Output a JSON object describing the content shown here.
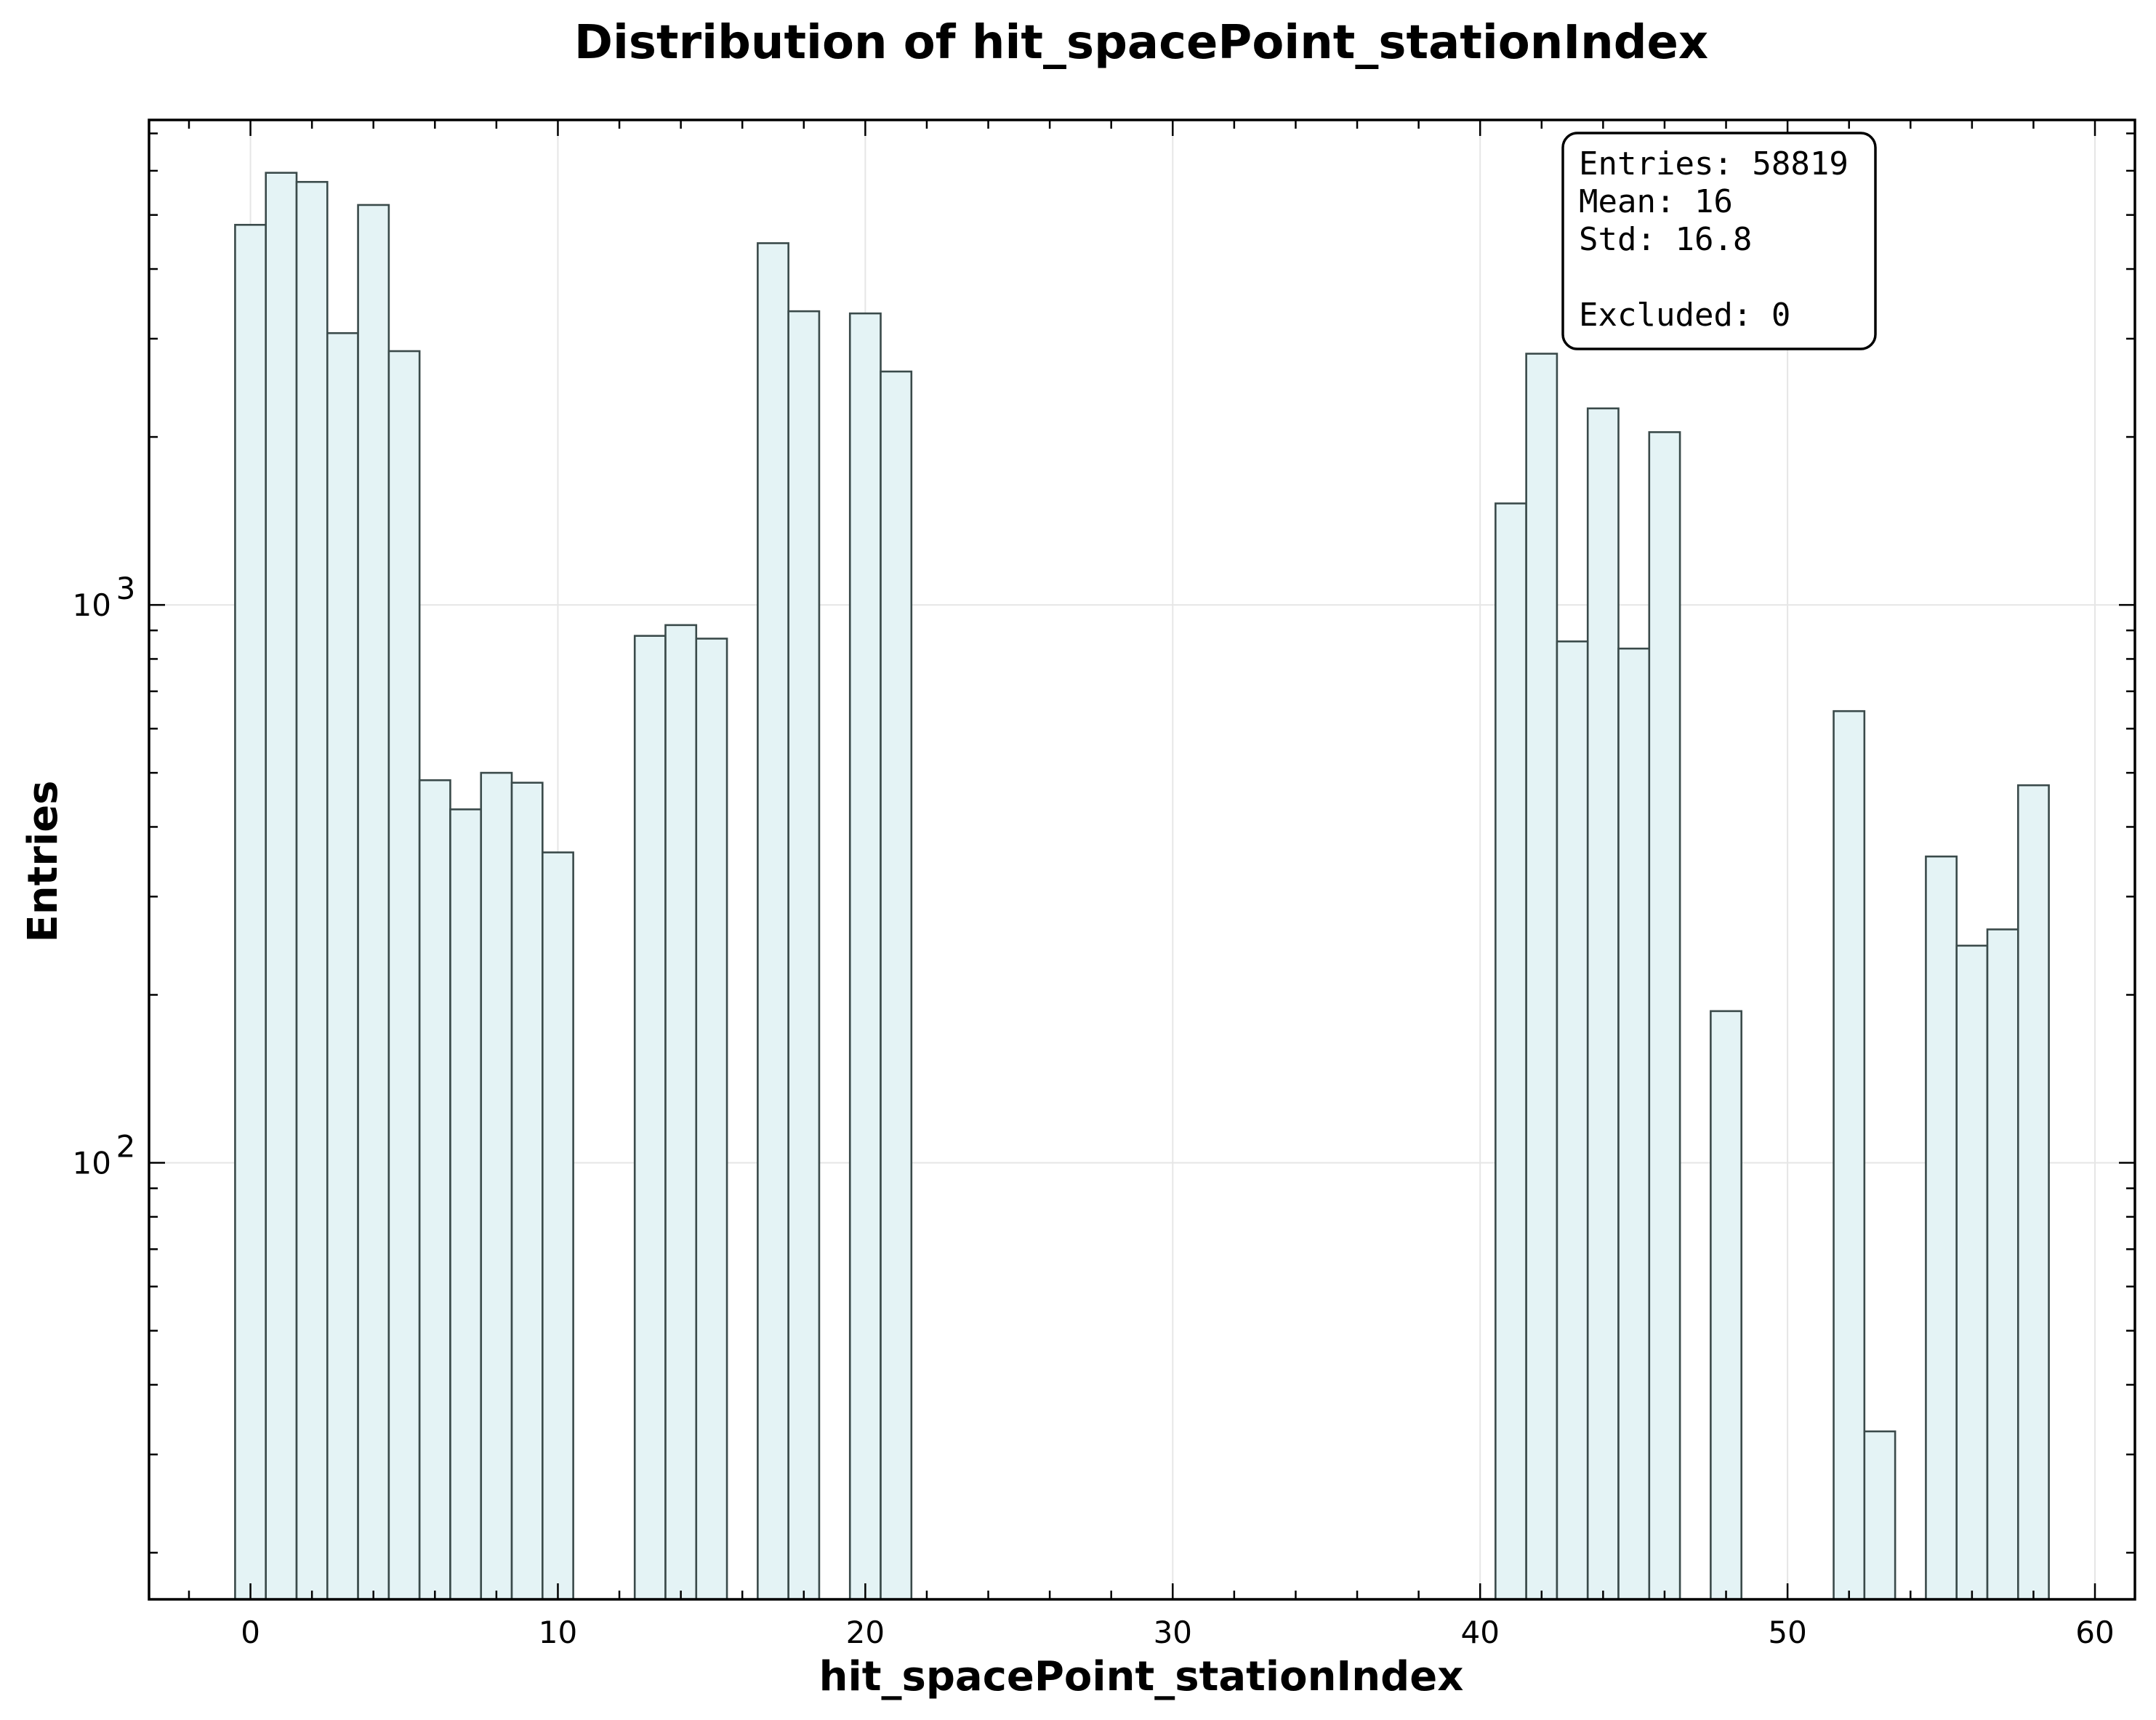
{
  "chart_data": {
    "type": "bar",
    "title": "Distribution of hit_spacePoint_stationIndex",
    "xlabel": "hit_spacePoint_stationIndex",
    "ylabel": "Entries",
    "xlim": [
      -3.3,
      61.3
    ],
    "ylim": [
      16.5,
      7400
    ],
    "yscale": "log",
    "grid": true,
    "x_ticks": [
      0,
      10,
      20,
      30,
      40,
      50,
      60
    ],
    "y_ticks": [
      {
        "value": 100,
        "base": "10",
        "exp": "2"
      },
      {
        "value": 1000,
        "base": "10",
        "exp": "3"
      }
    ],
    "bin_width": 1,
    "x": [
      0,
      1,
      2,
      3,
      4,
      5,
      6,
      7,
      8,
      9,
      10,
      13,
      14,
      15,
      17,
      18,
      20,
      21,
      41,
      42,
      43,
      44,
      45,
      46,
      48,
      52,
      53,
      55,
      56,
      57,
      58
    ],
    "values": [
      4800,
      5950,
      5730,
      3070,
      5210,
      2850,
      485,
      430,
      500,
      480,
      360,
      880,
      920,
      870,
      4450,
      3360,
      3330,
      2620,
      1520,
      2820,
      860,
      2250,
      835,
      2040,
      187,
      645,
      33,
      354,
      245,
      262,
      475
    ],
    "stats": {
      "entries": "Entries: 58819",
      "mean": "Mean: 16",
      "std": "Std: 16.8",
      "excluded": "Excluded: 0"
    }
  }
}
